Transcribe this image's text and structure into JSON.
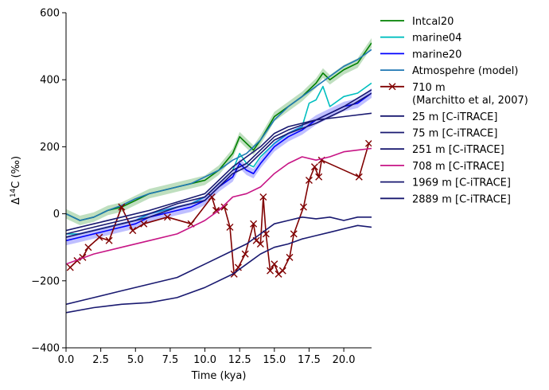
{
  "chart_data": {
    "type": "line",
    "title": "",
    "xlabel": "Time (kya)",
    "ylabel_base": "Δ",
    "ylabel_sup": "14",
    "ylabel_rest": "C (‰)",
    "xlim": [
      0,
      22
    ],
    "ylim": [
      -400,
      600
    ],
    "xticks": [
      0.0,
      2.5,
      5.0,
      7.5,
      10.0,
      12.5,
      15.0,
      17.5,
      20.0
    ],
    "xtick_labels": [
      "0.0",
      "2.5",
      "5.0",
      "7.5",
      "10.0",
      "12.5",
      "15.0",
      "17.5",
      "20.0"
    ],
    "yticks": [
      -400,
      -200,
      0,
      200,
      400,
      600
    ],
    "ytick_labels": [
      "−400",
      "−200",
      "0",
      "200",
      "400",
      "600"
    ],
    "legend_position": "outside-right",
    "series": [
      {
        "name": "Intcal20",
        "color": "#008000",
        "marker": "none",
        "band": true,
        "x": [
          0,
          1,
          2,
          3,
          4,
          5,
          6,
          7,
          8,
          9,
          10,
          11,
          12,
          12.5,
          13,
          13.5,
          14,
          15,
          16,
          17,
          18,
          18.5,
          19,
          20,
          21,
          22
        ],
        "y": [
          0,
          -20,
          -10,
          10,
          20,
          40,
          60,
          70,
          80,
          90,
          100,
          130,
          180,
          230,
          210,
          190,
          220,
          290,
          320,
          350,
          390,
          420,
          400,
          430,
          450,
          510
        ]
      },
      {
        "name": "marine04",
        "color": "#00BFBF",
        "marker": "none",
        "band": false,
        "x": [
          0,
          1,
          2,
          3,
          4,
          5,
          6,
          7,
          8,
          9,
          10,
          11,
          12,
          12.5,
          13,
          13.5,
          14,
          15,
          16,
          17,
          17.5,
          18,
          18.5,
          19,
          20,
          21,
          22
        ],
        "y": [
          -60,
          -60,
          -50,
          -40,
          -30,
          -20,
          0,
          10,
          20,
          30,
          50,
          90,
          130,
          180,
          150,
          140,
          170,
          210,
          240,
          260,
          330,
          340,
          380,
          320,
          350,
          360,
          390
        ]
      },
      {
        "name": "marine20",
        "color": "#0000FF",
        "marker": "none",
        "band": true,
        "x": [
          0,
          1,
          2,
          3,
          4,
          5,
          6,
          7,
          8,
          9,
          10,
          11,
          12,
          12.5,
          13,
          13.5,
          14,
          15,
          16,
          17,
          18,
          19,
          20,
          21,
          22
        ],
        "y": [
          -80,
          -70,
          -60,
          -50,
          -40,
          -30,
          -10,
          0,
          10,
          20,
          40,
          80,
          110,
          150,
          130,
          120,
          150,
          200,
          230,
          250,
          280,
          300,
          320,
          330,
          360
        ]
      },
      {
        "name": "Atmospehre (model)",
        "color": "#1F77B4",
        "marker": "none",
        "band": false,
        "x": [
          0,
          1,
          2,
          3,
          4,
          5,
          6,
          7,
          8,
          9,
          10,
          11,
          12,
          13,
          14,
          15,
          16,
          17,
          18,
          19,
          20,
          21,
          22
        ],
        "y": [
          0,
          -20,
          -10,
          10,
          25,
          45,
          60,
          70,
          80,
          90,
          110,
          130,
          160,
          180,
          220,
          280,
          320,
          350,
          380,
          410,
          440,
          460,
          490
        ]
      },
      {
        "name": "710 m\n(Marchitto et al, 2007)",
        "color": "#800000",
        "marker": "x",
        "band": false,
        "x": [
          0.3,
          0.8,
          1.2,
          1.6,
          2.4,
          3.1,
          4.0,
          4.8,
          5.6,
          7.3,
          9.0,
          10.5,
          10.8,
          11.4,
          11.8,
          12.1,
          12.4,
          12.9,
          13.5,
          13.7,
          14.0,
          14.2,
          14.4,
          14.7,
          15.0,
          15.3,
          15.6,
          16.1,
          16.4,
          17.1,
          17.5,
          17.9,
          18.2,
          18.4,
          21.1,
          21.8
        ],
        "y": [
          -160,
          -140,
          -130,
          -100,
          -70,
          -80,
          20,
          -50,
          -30,
          -10,
          -30,
          50,
          10,
          20,
          -40,
          -180,
          -160,
          -120,
          -30,
          -80,
          -90,
          50,
          -60,
          -170,
          -150,
          -180,
          -170,
          -130,
          -60,
          20,
          100,
          140,
          110,
          160,
          110,
          210
        ]
      },
      {
        "name": "25 m [C-iTRACE]",
        "color": "#191970",
        "marker": "none",
        "band": false,
        "x": [
          0,
          2,
          4,
          6,
          8,
          10,
          12,
          13,
          14,
          15,
          16,
          18,
          20,
          22
        ],
        "y": [
          -70,
          -50,
          -30,
          -10,
          20,
          40,
          120,
          140,
          180,
          220,
          240,
          270,
          310,
          360
        ]
      },
      {
        "name": "75 m [C-iTRACE]",
        "color": "#191970",
        "marker": "none",
        "band": false,
        "x": [
          0,
          2,
          4,
          6,
          8,
          10,
          12,
          13,
          14,
          15,
          16,
          18,
          20,
          22
        ],
        "y": [
          -60,
          -40,
          -20,
          0,
          30,
          50,
          130,
          150,
          190,
          230,
          250,
          280,
          320,
          370
        ]
      },
      {
        "name": "251 m [C-iTRACE]",
        "color": "#191970",
        "marker": "none",
        "band": false,
        "x": [
          0,
          2,
          4,
          6,
          8,
          10,
          12,
          13,
          14,
          15,
          16,
          18,
          20,
          22
        ],
        "y": [
          -50,
          -30,
          -10,
          10,
          35,
          60,
          140,
          170,
          200,
          240,
          260,
          280,
          290,
          300
        ]
      },
      {
        "name": "708 m [C-iTRACE]",
        "color": "#C71585",
        "marker": "none",
        "band": false,
        "x": [
          0,
          2,
          4,
          6,
          8,
          10,
          11,
          12,
          13,
          14,
          15,
          16,
          17,
          18,
          19,
          20,
          21,
          22
        ],
        "y": [
          -150,
          -120,
          -100,
          -80,
          -60,
          -20,
          10,
          50,
          60,
          80,
          120,
          150,
          170,
          160,
          170,
          185,
          190,
          195
        ]
      },
      {
        "name": "1969 m [C-iTRACE]",
        "color": "#191970",
        "marker": "none",
        "band": false,
        "x": [
          0,
          2,
          4,
          6,
          8,
          10,
          12,
          13,
          14,
          15,
          16,
          17,
          18,
          19,
          20,
          21,
          22
        ],
        "y": [
          -270,
          -250,
          -230,
          -210,
          -190,
          -150,
          -110,
          -90,
          -60,
          -30,
          -20,
          -10,
          -15,
          -10,
          -20,
          -10,
          -10
        ]
      },
      {
        "name": "2889 m [C-iTRACE]",
        "color": "#191970",
        "marker": "none",
        "band": false,
        "x": [
          0,
          2,
          4,
          6,
          8,
          10,
          12,
          13,
          14,
          15,
          16,
          17,
          18,
          19,
          20,
          21,
          22
        ],
        "y": [
          -295,
          -280,
          -270,
          -265,
          -250,
          -220,
          -180,
          -150,
          -120,
          -100,
          -90,
          -75,
          -65,
          -55,
          -45,
          -35,
          -40
        ]
      }
    ]
  }
}
